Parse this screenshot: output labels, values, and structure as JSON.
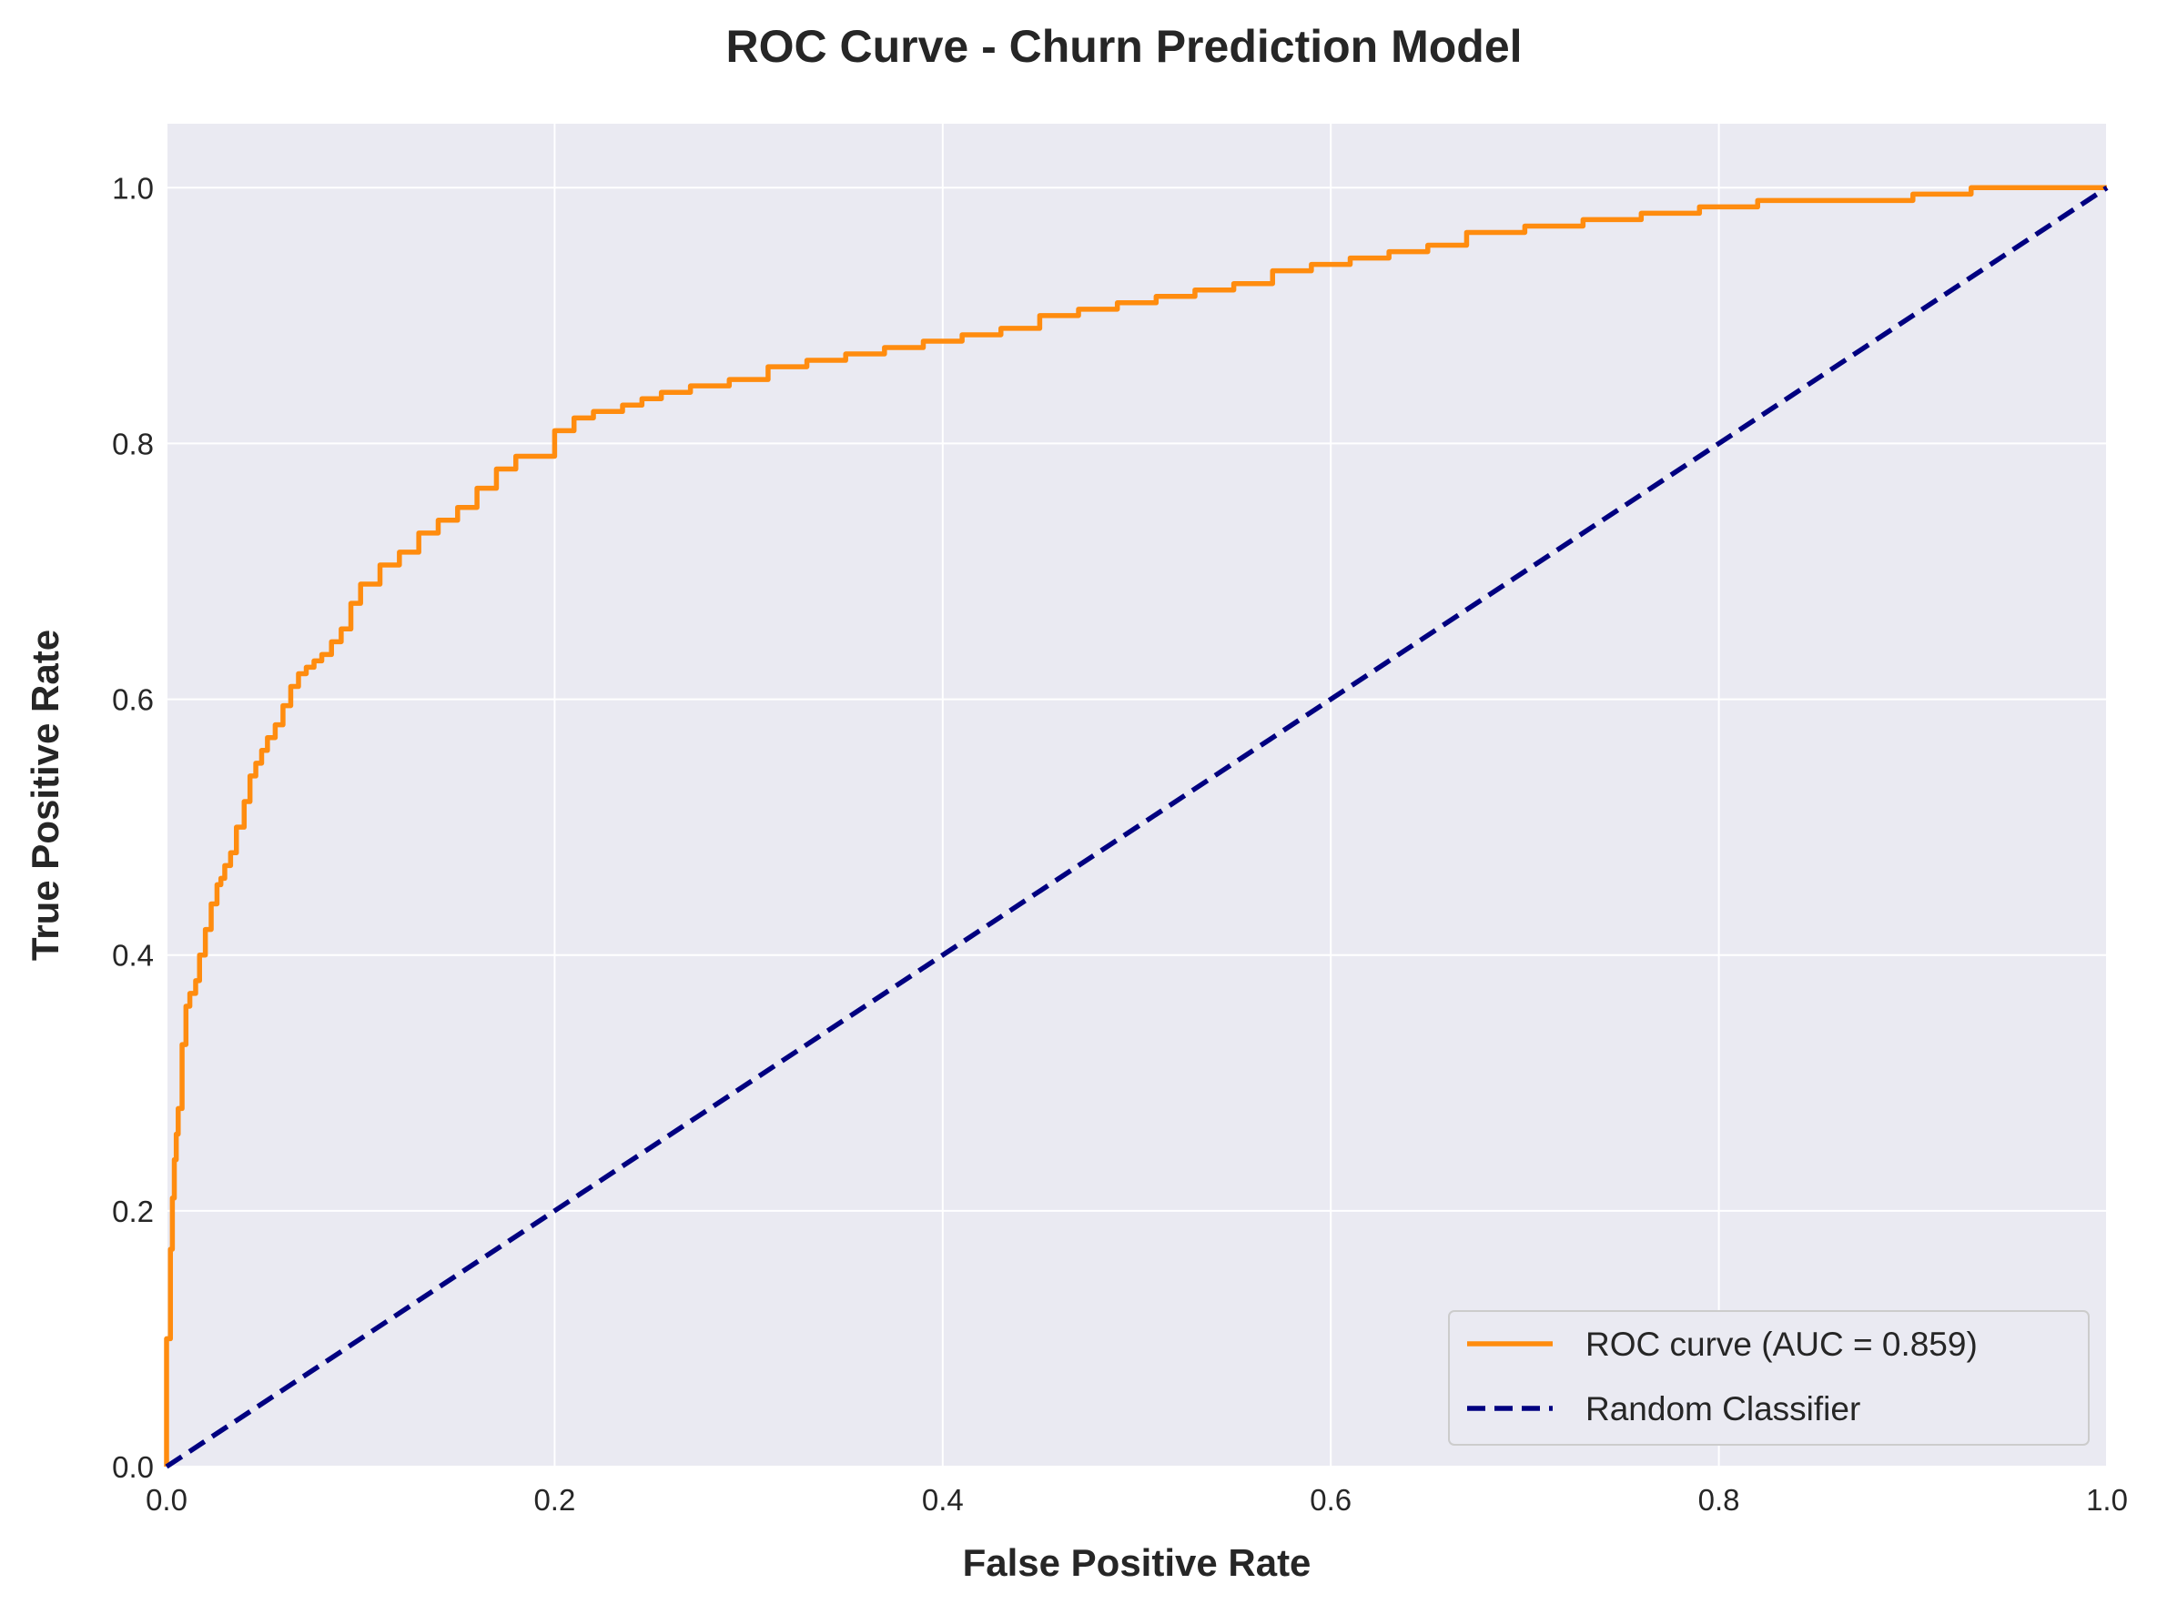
{
  "chart_data": {
    "type": "line",
    "title": "ROC Curve - Churn Prediction Model",
    "xlabel": "False Positive Rate",
    "ylabel": "True Positive Rate",
    "xlim": [
      0.0,
      1.0
    ],
    "ylim": [
      0.0,
      1.05
    ],
    "xticks": [
      0.0,
      0.2,
      0.4,
      0.6,
      0.8,
      1.0
    ],
    "yticks": [
      0.0,
      0.2,
      0.4,
      0.6,
      0.8,
      1.0
    ],
    "xtick_labels": [
      "0.0",
      "0.2",
      "0.4",
      "0.6",
      "0.8",
      "1.0"
    ],
    "ytick_labels": [
      "0.0",
      "0.2",
      "0.4",
      "0.6",
      "0.8",
      "1.0"
    ],
    "grid": true,
    "legend_position": "lower-right",
    "background_color": "#eaeaf2",
    "grid_color": "#ffffff",
    "series": [
      {
        "name": "ROC curve (AUC = 0.859)",
        "color": "#ff8c0f",
        "style": "solid",
        "x": [
          0.0,
          0.0,
          0.002,
          0.003,
          0.004,
          0.005,
          0.006,
          0.008,
          0.01,
          0.012,
          0.015,
          0.017,
          0.02,
          0.023,
          0.026,
          0.028,
          0.03,
          0.033,
          0.036,
          0.04,
          0.043,
          0.046,
          0.049,
          0.052,
          0.056,
          0.06,
          0.064,
          0.068,
          0.072,
          0.076,
          0.08,
          0.085,
          0.09,
          0.095,
          0.1,
          0.11,
          0.12,
          0.13,
          0.14,
          0.15,
          0.16,
          0.17,
          0.18,
          0.19,
          0.2,
          0.21,
          0.22,
          0.235,
          0.245,
          0.255,
          0.27,
          0.29,
          0.31,
          0.33,
          0.35,
          0.37,
          0.39,
          0.41,
          0.43,
          0.45,
          0.47,
          0.49,
          0.51,
          0.53,
          0.55,
          0.57,
          0.59,
          0.61,
          0.63,
          0.65,
          0.67,
          0.7,
          0.73,
          0.76,
          0.79,
          0.82,
          0.86,
          0.9,
          0.93,
          0.96,
          1.0
        ],
        "y": [
          0.0,
          0.1,
          0.17,
          0.21,
          0.24,
          0.26,
          0.28,
          0.33,
          0.36,
          0.37,
          0.38,
          0.4,
          0.42,
          0.44,
          0.455,
          0.46,
          0.47,
          0.48,
          0.5,
          0.52,
          0.54,
          0.55,
          0.56,
          0.57,
          0.58,
          0.595,
          0.61,
          0.62,
          0.625,
          0.63,
          0.635,
          0.645,
          0.655,
          0.675,
          0.69,
          0.705,
          0.715,
          0.73,
          0.74,
          0.75,
          0.765,
          0.78,
          0.79,
          0.79,
          0.81,
          0.82,
          0.825,
          0.83,
          0.835,
          0.84,
          0.845,
          0.85,
          0.86,
          0.865,
          0.87,
          0.875,
          0.88,
          0.885,
          0.89,
          0.9,
          0.905,
          0.91,
          0.915,
          0.92,
          0.925,
          0.935,
          0.94,
          0.945,
          0.95,
          0.955,
          0.965,
          0.97,
          0.975,
          0.98,
          0.985,
          0.99,
          0.99,
          0.995,
          1.0,
          1.0,
          1.0
        ]
      },
      {
        "name": "Random Classifier",
        "color": "#000080",
        "style": "dashed",
        "x": [
          0.0,
          1.0
        ],
        "y": [
          0.0,
          1.0
        ]
      }
    ]
  }
}
